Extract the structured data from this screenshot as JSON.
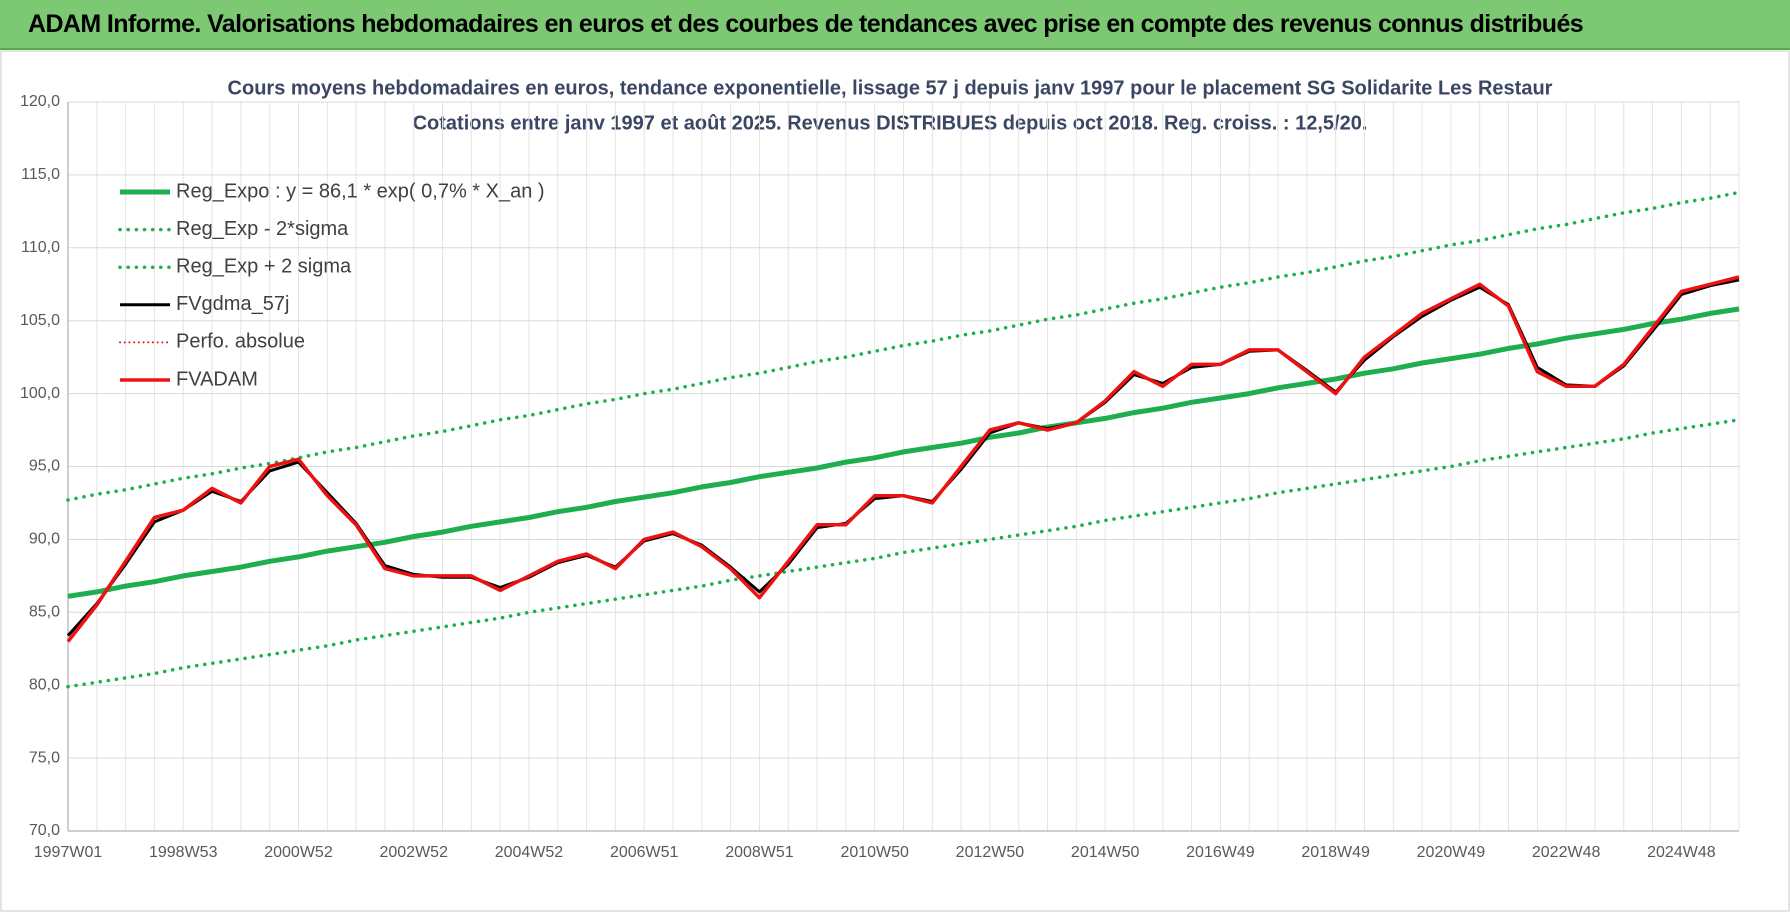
{
  "header": "ADAM Informe. Valorisations hebdomadaires en euros et des courbes de tendances avec prise en compte des revenus connus distribués",
  "chart_data": {
    "type": "line",
    "title": "Cours moyens hebdomadaires en euros, tendance exponentielle, lissage 57 j depuis janv 1997  pour le placement SG Solidarite Les Restaur",
    "subtitle": "Cotations entre janv 1997 et août 2025.  Revenus DISTRIBUES depuis oct 2018. Reg. croiss. : 12,5/20.",
    "categories": [
      "1997W01",
      null,
      null,
      null,
      "1998W53",
      null,
      null,
      null,
      "2000W52",
      null,
      null,
      null,
      "2002W52",
      null,
      null,
      null,
      "2004W52",
      null,
      null,
      null,
      "2006W51",
      null,
      null,
      null,
      "2008W51",
      null,
      null,
      null,
      "2010W50",
      null,
      null,
      null,
      "2012W50",
      null,
      null,
      null,
      "2014W50",
      null,
      null,
      null,
      "2016W49",
      null,
      null,
      null,
      "2018W49",
      null,
      null,
      null,
      "2020W49",
      null,
      null,
      null,
      "2022W48",
      null,
      null,
      null,
      "2024W48",
      null,
      null
    ],
    "ylim": [
      70,
      120
    ],
    "yticks": [
      {
        "value": 70,
        "label": "70,0"
      },
      {
        "value": 75,
        "label": "75,0"
      },
      {
        "value": 80,
        "label": "80,0"
      },
      {
        "value": 85,
        "label": "85,0"
      },
      {
        "value": 90,
        "label": "90,0"
      },
      {
        "value": 95,
        "label": "95,0"
      },
      {
        "value": 100,
        "label": "100,0"
      },
      {
        "value": 105,
        "label": "105,0"
      },
      {
        "value": 110,
        "label": "110,0"
      },
      {
        "value": 115,
        "label": "115,0"
      },
      {
        "value": 120,
        "label": "120,0"
      }
    ],
    "grid": true,
    "legend": "upper left",
    "series": [
      {
        "name": "Reg_Expo : y = 86,1 * exp( 0,7% *  X_an )",
        "color": "#1fae4f",
        "style": "solid",
        "width": 5,
        "values": [
          86.1,
          86.4,
          86.8,
          87.1,
          87.5,
          87.8,
          88.1,
          88.5,
          88.8,
          89.2,
          89.5,
          89.8,
          90.2,
          90.5,
          90.9,
          91.2,
          91.5,
          91.9,
          92.2,
          92.6,
          92.9,
          93.2,
          93.6,
          93.9,
          94.3,
          94.6,
          94.9,
          95.3,
          95.6,
          96.0,
          96.3,
          96.6,
          97.0,
          97.3,
          97.7,
          98.0,
          98.3,
          98.7,
          99.0,
          99.4,
          99.7,
          100.0,
          100.4,
          100.7,
          101.0,
          101.4,
          101.7,
          102.1,
          102.4,
          102.7,
          103.1,
          103.4,
          103.8,
          104.1,
          104.4,
          104.8,
          105.1,
          105.5,
          105.8
        ]
      },
      {
        "name": "Reg_Exp - 2*sigma",
        "color": "#1fae4f",
        "style": "dotted",
        "width": 3.5,
        "values": [
          79.9,
          80.2,
          80.5,
          80.8,
          81.2,
          81.5,
          81.8,
          82.1,
          82.4,
          82.7,
          83.1,
          83.4,
          83.7,
          84.0,
          84.3,
          84.6,
          85.0,
          85.3,
          85.6,
          85.9,
          86.2,
          86.5,
          86.8,
          87.2,
          87.5,
          87.8,
          88.1,
          88.4,
          88.7,
          89.1,
          89.4,
          89.7,
          90.0,
          90.3,
          90.6,
          90.9,
          91.3,
          91.6,
          91.9,
          92.2,
          92.5,
          92.8,
          93.2,
          93.5,
          93.8,
          94.1,
          94.4,
          94.7,
          95.0,
          95.4,
          95.7,
          96.0,
          96.3,
          96.6,
          96.9,
          97.3,
          97.6,
          97.9,
          98.2
        ]
      },
      {
        "name": "Reg_Exp + 2 sigma",
        "color": "#1fae4f",
        "style": "dotted",
        "width": 3.5,
        "values": [
          92.7,
          93.1,
          93.4,
          93.8,
          94.2,
          94.5,
          94.9,
          95.2,
          95.6,
          96.0,
          96.3,
          96.7,
          97.1,
          97.4,
          97.8,
          98.2,
          98.5,
          98.9,
          99.3,
          99.6,
          100.0,
          100.3,
          100.7,
          101.1,
          101.4,
          101.8,
          102.2,
          102.5,
          102.9,
          103.3,
          103.6,
          104.0,
          104.3,
          104.7,
          105.1,
          105.4,
          105.8,
          106.2,
          106.5,
          106.9,
          107.3,
          107.6,
          108.0,
          108.3,
          108.7,
          109.1,
          109.4,
          109.8,
          110.2,
          110.5,
          110.9,
          111.3,
          111.6,
          112.0,
          112.4,
          112.7,
          113.1,
          113.4,
          113.8
        ]
      },
      {
        "name": "FVgdma_57j",
        "color": "#000000",
        "style": "solid",
        "width": 3,
        "values": [
          83.4,
          85.6,
          88.3,
          91.2,
          92.0,
          93.3,
          92.6,
          94.7,
          95.3,
          93.2,
          91.1,
          88.2,
          87.6,
          87.4,
          87.4,
          86.7,
          87.4,
          88.4,
          88.9,
          88.1,
          89.9,
          90.4,
          89.6,
          88.1,
          86.4,
          88.3,
          90.8,
          91.1,
          92.8,
          93.0,
          92.6,
          94.8,
          97.3,
          98.0,
          97.6,
          98.0,
          99.4,
          101.3,
          100.7,
          101.8,
          102.0,
          102.9,
          103.0,
          101.6,
          100.1,
          102.3,
          103.9,
          105.3,
          106.4,
          107.3,
          106.1,
          101.8,
          100.6,
          100.5,
          101.9,
          104.3,
          106.8,
          107.4,
          107.8
        ]
      },
      {
        "name": "Perfo. absolue",
        "color": "#e31a1c",
        "style": "dotted",
        "width": 2,
        "values": [
          null,
          null,
          null,
          null,
          null,
          null,
          null,
          null,
          null,
          null,
          null,
          null,
          null,
          null,
          null,
          null,
          null,
          null,
          null,
          null,
          null,
          null,
          null,
          null,
          null,
          null,
          null,
          null,
          null,
          null,
          null,
          null,
          null,
          null,
          null,
          null,
          null,
          null,
          null,
          null,
          null,
          null,
          null,
          null,
          null,
          null,
          null,
          null,
          null,
          null,
          null,
          null,
          null,
          null,
          null,
          null,
          null,
          null,
          null
        ]
      },
      {
        "name": "FVADAM",
        "color": "#ee1111",
        "style": "solid",
        "width": 3.5,
        "values": [
          83.0,
          85.5,
          88.5,
          91.5,
          92.0,
          93.5,
          92.5,
          95.0,
          95.5,
          93.0,
          91.0,
          88.0,
          87.5,
          87.5,
          87.5,
          86.5,
          87.5,
          88.5,
          89.0,
          88.0,
          90.0,
          90.5,
          89.5,
          88.0,
          86.0,
          88.5,
          91.0,
          91.0,
          93.0,
          93.0,
          92.5,
          95.0,
          97.5,
          98.0,
          97.5,
          98.0,
          99.5,
          101.5,
          100.5,
          102.0,
          102.0,
          103.0,
          103.0,
          101.5,
          100.0,
          102.5,
          104.0,
          105.5,
          106.5,
          107.5,
          106.0,
          101.5,
          100.5,
          100.5,
          102.0,
          104.5,
          107.0,
          107.5,
          108.0
        ]
      }
    ]
  }
}
